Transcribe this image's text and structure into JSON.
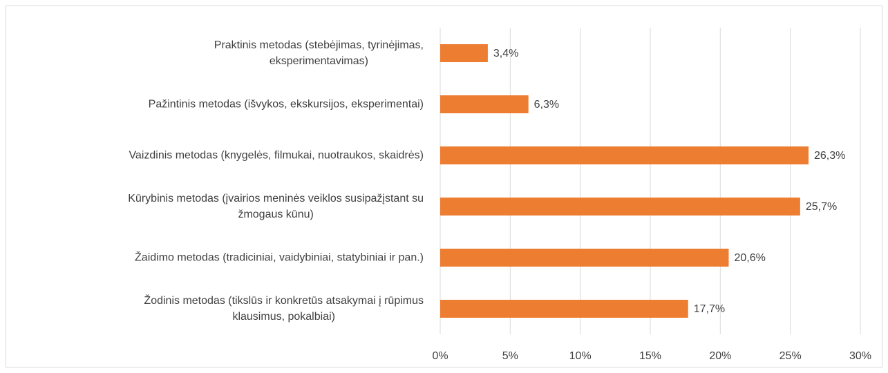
{
  "chart_data": {
    "type": "bar",
    "orientation": "horizontal",
    "categories": [
      "Praktinis metodas (stebėjimas, tyrinėjimas,\neksperimentavimas)",
      "Pažintinis metodas (išvykos, ekskursijos, eksperimentai)",
      "Vaizdinis metodas (knygelės, filmukai, nuotraukos, skaidrės)",
      "Kūrybinis metodas (įvairios meninės veiklos susipažįstant su\nžmogaus kūnu)",
      "Žaidimo metodas  (tradiciniai, vaidybiniai, statybiniai ir pan.)",
      "Žodinis metodas (tikslūs ir konkretūs atsakymai į rūpimus\nklausimus, pokalbiai)"
    ],
    "values": [
      3.4,
      6.3,
      26.3,
      25.7,
      20.6,
      17.7
    ],
    "value_labels": [
      "3,4%",
      "6,3%",
      "26,3%",
      "25,7%",
      "20,6%",
      "17,7%"
    ],
    "color": "#ed7d31",
    "xlim": [
      0,
      30
    ],
    "xticks": [
      {
        "value": 0,
        "label": "0%"
      },
      {
        "value": 5,
        "label": "5%"
      },
      {
        "value": 10,
        "label": "10%"
      },
      {
        "value": 15,
        "label": "15%"
      },
      {
        "value": 20,
        "label": "20%"
      },
      {
        "value": 25,
        "label": "25%"
      },
      {
        "value": 30,
        "label": "30%"
      }
    ],
    "grid": true
  }
}
